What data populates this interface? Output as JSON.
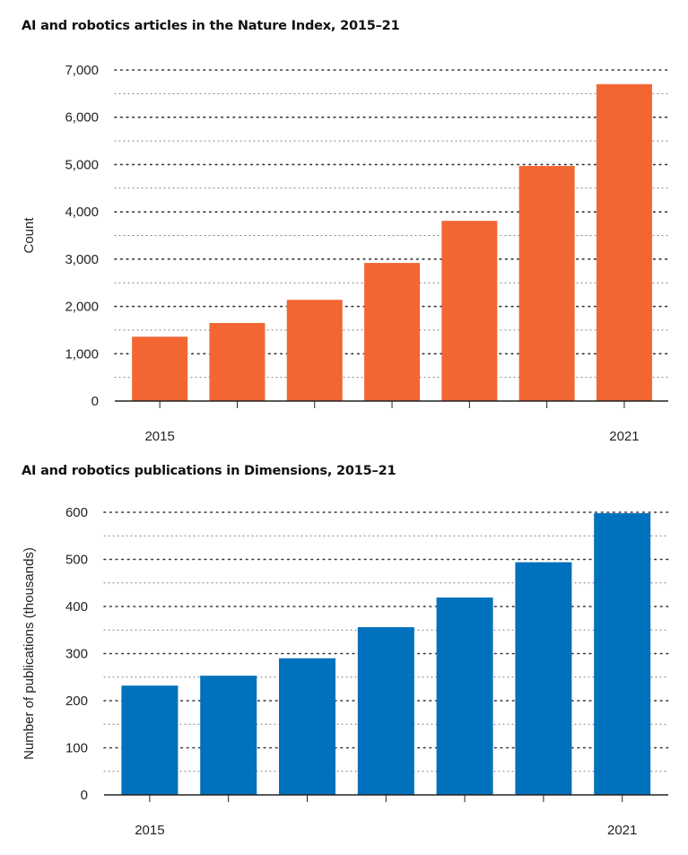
{
  "chart_data": [
    {
      "type": "bar",
      "title": "AI and robotics articles in the Nature Index, 2015–21",
      "xlabel": "",
      "ylabel": "Count",
      "categories": [
        "2015",
        "2016",
        "2017",
        "2018",
        "2019",
        "2020",
        "2021"
      ],
      "x_tick_labels": [
        "2015",
        "",
        "",
        "",
        "",
        "",
        "2021"
      ],
      "values": [
        1360,
        1650,
        2140,
        2920,
        3810,
        4970,
        6700
      ],
      "ylim": [
        0,
        7000
      ],
      "yticks": [
        0,
        1000,
        2000,
        3000,
        4000,
        5000,
        6000,
        7000
      ],
      "ytick_labels": [
        "0",
        "1,000",
        "2,000",
        "3,000",
        "4,000",
        "5,000",
        "6,000",
        "7,000"
      ],
      "grid": "dotted horizontal",
      "bar_color": "#f26633"
    },
    {
      "type": "bar",
      "title": "AI and robotics publications in Dimensions, 2015–21",
      "xlabel": "",
      "ylabel": "Number of publications (thousands)",
      "categories": [
        "2015",
        "2016",
        "2017",
        "2018",
        "2019",
        "2020",
        "2021"
      ],
      "x_tick_labels": [
        "2015",
        "",
        "",
        "",
        "",
        "",
        "2021"
      ],
      "values": [
        232,
        253,
        290,
        356,
        419,
        494,
        598
      ],
      "ylim": [
        0,
        600
      ],
      "yticks": [
        0,
        100,
        200,
        300,
        400,
        500,
        600
      ],
      "ytick_labels": [
        "0",
        "100",
        "200",
        "300",
        "400",
        "500",
        "600"
      ],
      "grid": "dotted horizontal",
      "bar_color": "#0071bc"
    }
  ]
}
